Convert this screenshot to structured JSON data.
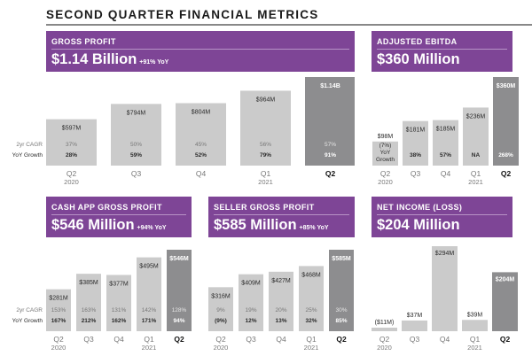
{
  "page": {
    "title": "SECOND QUARTER FINANCIAL METRICS"
  },
  "colors": {
    "header_bg": "#7e4596",
    "bar_past": "#cbcbcb",
    "bar_current": "#8d8d8f",
    "label_dark": "#2b2b2b",
    "label_muted": "#777777"
  },
  "row_labels": {
    "cagr": "2yr CAGR",
    "yoy": "YoY Growth"
  },
  "chart_data": [
    {
      "id": "gross_profit",
      "type": "bar",
      "metric": "GROSS PROFIT",
      "headline": "$1.14 Billion",
      "headline_yoy": "+91% YoY",
      "categories": [
        "Q2",
        "Q3",
        "Q4",
        "Q1",
        "Q2"
      ],
      "years": [
        "2020",
        "",
        "",
        "2021",
        ""
      ],
      "values": [
        597,
        794,
        804,
        964,
        1140
      ],
      "value_labels": [
        "$597M",
        "$794M",
        "$804M",
        "$964M",
        "$1.14B"
      ],
      "cagr": [
        "37%",
        "50%",
        "45%",
        "56%",
        "57%"
      ],
      "yoy": [
        "28%",
        "59%",
        "52%",
        "79%",
        "91%"
      ],
      "unit": "USD millions"
    },
    {
      "id": "adjusted_ebitda",
      "type": "bar",
      "metric": "ADJUSTED EBITDA",
      "headline": "$360 Million",
      "headline_yoy": "",
      "categories": [
        "Q2",
        "Q3",
        "Q4",
        "Q1",
        "Q2"
      ],
      "years": [
        "2020",
        "",
        "",
        "2021",
        ""
      ],
      "values": [
        98,
        181,
        185,
        236,
        360
      ],
      "value_labels": [
        "$98M",
        "$181M",
        "$185M",
        "$236M",
        "$360M"
      ],
      "yoy": [
        "(7%)",
        "38%",
        "57%",
        "NA",
        "268%"
      ],
      "inline_yoy_label": [
        "YoY",
        "Growth"
      ],
      "unit": "USD millions"
    },
    {
      "id": "cash_app_gross_profit",
      "type": "bar",
      "metric": "CASH APP GROSS PROFIT",
      "headline": "$546 Million",
      "headline_yoy": "+94% YoY",
      "categories": [
        "Q2",
        "Q3",
        "Q4",
        "Q1",
        "Q2"
      ],
      "years": [
        "2020",
        "",
        "",
        "2021",
        ""
      ],
      "values": [
        281,
        385,
        377,
        495,
        546
      ],
      "value_labels": [
        "$281M",
        "$385M",
        "$377M",
        "$495M",
        "$546M"
      ],
      "cagr": [
        "153%",
        "163%",
        "131%",
        "142%",
        "128%"
      ],
      "yoy": [
        "167%",
        "212%",
        "162%",
        "171%",
        "94%"
      ],
      "unit": "USD millions"
    },
    {
      "id": "seller_gross_profit",
      "type": "bar",
      "metric": "SELLER GROSS PROFIT",
      "headline": "$585 Million",
      "headline_yoy": "+85% YoY",
      "categories": [
        "Q2",
        "Q3",
        "Q4",
        "Q1",
        "Q2"
      ],
      "years": [
        "2020",
        "",
        "",
        "2021",
        ""
      ],
      "values": [
        316,
        409,
        427,
        468,
        585
      ],
      "value_labels": [
        "$316M",
        "$409M",
        "$427M",
        "$468M",
        "$585M"
      ],
      "cagr": [
        "9%",
        "19%",
        "20%",
        "25%",
        "30%"
      ],
      "yoy": [
        "(9%)",
        "12%",
        "13%",
        "32%",
        "85%"
      ],
      "unit": "USD millions"
    },
    {
      "id": "net_income",
      "type": "bar",
      "metric": "NET INCOME (LOSS)",
      "headline": "$204 Million",
      "headline_yoy": "",
      "categories": [
        "Q2",
        "Q3",
        "Q4",
        "Q1",
        "Q2"
      ],
      "years": [
        "2020",
        "",
        "",
        "2021",
        ""
      ],
      "values": [
        -11,
        37,
        294,
        39,
        204
      ],
      "value_labels": [
        "($11M)",
        "$37M",
        "$294M",
        "$39M",
        "$204M"
      ],
      "unit": "USD millions"
    }
  ]
}
